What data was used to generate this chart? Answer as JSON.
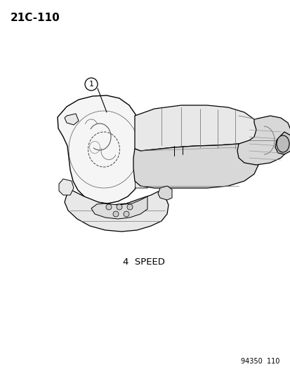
{
  "title_label": "21C-110",
  "part_number": "94350  110",
  "speed_label": "4  SPEED",
  "callout_number": "1",
  "background_color": "#ffffff",
  "line_color": "#000000",
  "title_fontsize": 11,
  "label_fontsize": 8.5,
  "callout_fontsize": 8,
  "part_num_fontsize": 7
}
